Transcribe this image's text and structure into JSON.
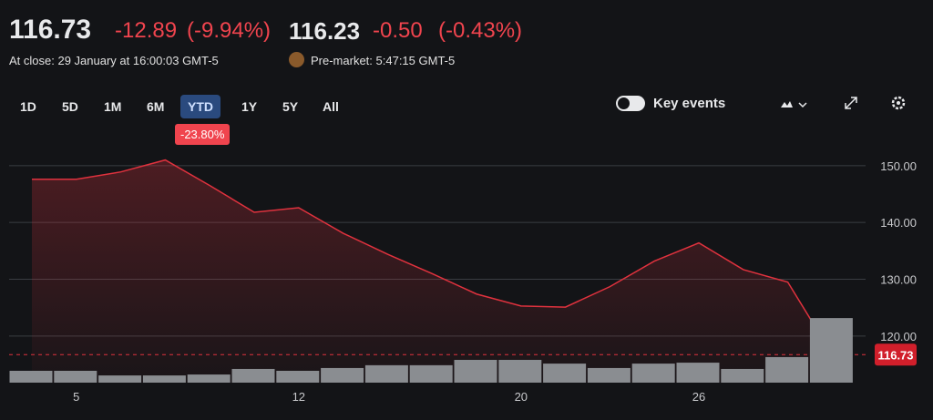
{
  "header": {
    "price": "116.73",
    "change": "-12.89",
    "change_pct": "(-9.94%)",
    "close_note": "At close: 29 January at 16:00:03 GMT-5",
    "pre_price": "116.23",
    "pre_change": "-0.50",
    "pre_change_pct": "(-0.43%)",
    "pre_note": "Pre-market: 5:47:15 GMT-5"
  },
  "toolbar": {
    "ranges": [
      "1D",
      "5D",
      "1M",
      "6M",
      "YTD",
      "1Y",
      "5Y",
      "All"
    ],
    "active": "YTD",
    "range_change": "-23.80%",
    "key_events": "Key events"
  },
  "chart_data": {
    "type": "line",
    "categories": [
      null,
      "5",
      null,
      null,
      null,
      null,
      "12",
      null,
      null,
      null,
      null,
      "20",
      null,
      null,
      null,
      "26",
      null,
      null,
      null
    ],
    "series": [
      {
        "color": "#e0323e",
        "values": [
          147.6,
          147.6,
          148.9,
          151.0,
          146.5,
          141.8,
          142.6,
          138.1,
          134.4,
          131.0,
          127.4,
          125.3,
          125.1,
          128.7,
          133.2,
          136.4,
          131.7,
          129.5,
          116.73
        ]
      },
      {
        "type": "bar",
        "axis": "y2",
        "color": "#8a8d91",
        "values": [
          5.1,
          5.1,
          3.1,
          3.1,
          3.5,
          5.9,
          5.1,
          6.3,
          7.5,
          7.5,
          9.8,
          9.8,
          8.2,
          6.3,
          8.2,
          8.6,
          5.9,
          11,
          27.8
        ]
      }
    ],
    "ylim": [
      111.8,
      152.7
    ],
    "yticks": [
      {
        "value": 120,
        "label": "120.00"
      },
      {
        "value": 130,
        "label": "130.00"
      },
      {
        "value": 140,
        "label": "140.00"
      },
      {
        "value": 150,
        "label": "150.00"
      }
    ],
    "y2lim": [
      0,
      100
    ],
    "grid": true
  }
}
